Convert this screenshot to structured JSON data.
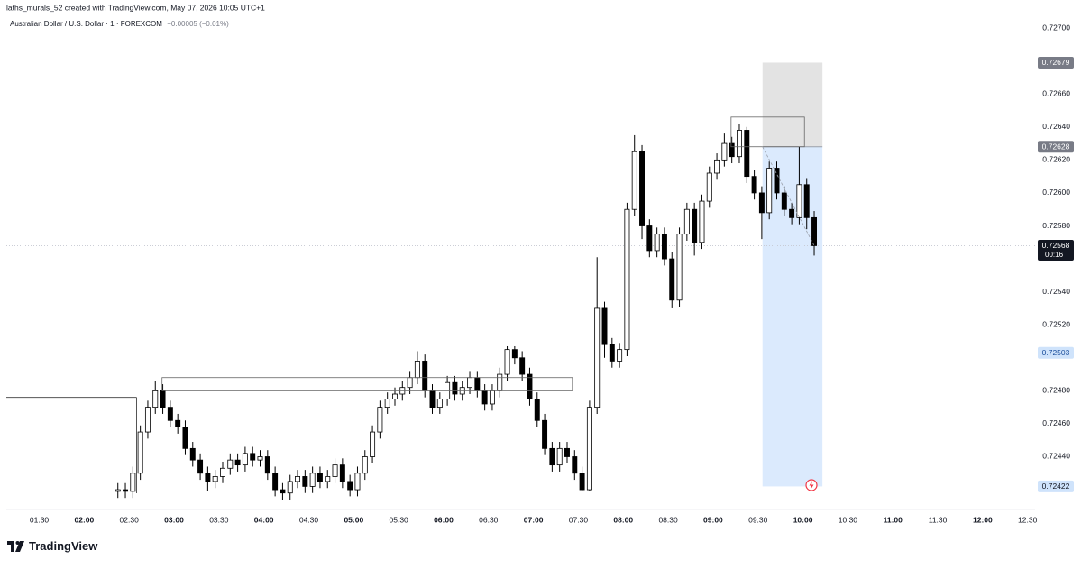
{
  "header": {
    "author_line": "laths_murals_52 created with TradingView.com, May 07, 2026 10:05 UTC+1"
  },
  "footer": {
    "brand": "TradingView"
  },
  "chart_data": {
    "type": "candlestick",
    "symbol": "Australian Dollar / U.S. Dollar · 1 · FOREXCOM",
    "change_text": "−0.00005 (−0.01%)",
    "up_color": "#ffffff",
    "down_color": "#000000",
    "border_color": "#000000",
    "xlim": [
      "01:08",
      "12:35"
    ],
    "xticks": [
      "01:30",
      "02:00",
      "02:30",
      "03:00",
      "03:30",
      "04:00",
      "04:30",
      "05:00",
      "05:30",
      "06:00",
      "06:30",
      "07:00",
      "07:30",
      "08:00",
      "08:30",
      "09:00",
      "09:30",
      "10:00",
      "10:30",
      "11:00",
      "11:30",
      "12:00",
      "12:30"
    ],
    "ylim": [
      0.72408,
      0.72717
    ],
    "yticks": [
      {
        "value": 0.727,
        "label": "0.72700"
      },
      {
        "value": 0.7266,
        "label": "0.72660"
      },
      {
        "value": 0.7264,
        "label": "0.72640"
      },
      {
        "value": 0.7262,
        "label": "0.72620"
      },
      {
        "value": 0.726,
        "label": "0.72600"
      },
      {
        "value": 0.7258,
        "label": "0.72580"
      },
      {
        "value": 0.7254,
        "label": "0.72540"
      },
      {
        "value": 0.7252,
        "label": "0.72520"
      },
      {
        "value": 0.7248,
        "label": "0.72480"
      },
      {
        "value": 0.7246,
        "label": "0.72460"
      },
      {
        "value": 0.7244,
        "label": "0.72440"
      }
    ],
    "x": [
      "02:20",
      "02:25",
      "02:30",
      "02:35",
      "02:40",
      "02:45",
      "02:50",
      "02:55",
      "03:00",
      "03:05",
      "03:10",
      "03:15",
      "03:20",
      "03:25",
      "03:30",
      "03:35",
      "03:40",
      "03:45",
      "03:50",
      "03:55",
      "04:00",
      "04:05",
      "04:10",
      "04:15",
      "04:20",
      "04:25",
      "04:30",
      "04:35",
      "04:40",
      "04:45",
      "04:50",
      "04:55",
      "05:00",
      "05:05",
      "05:10",
      "05:15",
      "05:20",
      "05:25",
      "05:30",
      "05:35",
      "05:40",
      "05:45",
      "05:50",
      "05:55",
      "06:00",
      "06:05",
      "06:10",
      "06:15",
      "06:20",
      "06:25",
      "06:30",
      "06:35",
      "06:40",
      "06:45",
      "06:50",
      "06:55",
      "07:00",
      "07:05",
      "07:10",
      "07:15",
      "07:20",
      "07:25",
      "07:30",
      "07:35",
      "07:40",
      "07:45",
      "07:50",
      "07:55",
      "08:00",
      "08:05",
      "08:10",
      "08:15",
      "08:20",
      "08:25",
      "08:30",
      "08:35",
      "08:40",
      "08:45",
      "08:50",
      "08:55",
      "09:00",
      "09:05",
      "09:10",
      "09:15",
      "09:20",
      "09:25",
      "09:30",
      "09:35",
      "09:40",
      "09:45",
      "09:50",
      "09:55",
      "10:00",
      "10:05"
    ],
    "open": [
      0.72419,
      0.7242,
      0.72419,
      0.7243,
      0.72455,
      0.7247,
      0.7248,
      0.7247,
      0.72462,
      0.72458,
      0.72445,
      0.72438,
      0.7243,
      0.72425,
      0.72428,
      0.72433,
      0.72438,
      0.72435,
      0.72442,
      0.72438,
      0.7244,
      0.7243,
      0.7242,
      0.72418,
      0.72425,
      0.72428,
      0.72422,
      0.7243,
      0.72425,
      0.72428,
      0.72435,
      0.72425,
      0.7242,
      0.7243,
      0.7244,
      0.72455,
      0.7247,
      0.72475,
      0.72478,
      0.72482,
      0.72488,
      0.72498,
      0.7248,
      0.7247,
      0.72475,
      0.72485,
      0.72478,
      0.72482,
      0.72488,
      0.7248,
      0.72472,
      0.7248,
      0.7249,
      0.72505,
      0.725,
      0.7249,
      0.72475,
      0.72462,
      0.72445,
      0.72435,
      0.72445,
      0.7244,
      0.7243,
      0.7242,
      0.7247,
      0.7253,
      0.72508,
      0.72498,
      0.72505,
      0.7259,
      0.72625,
      0.7258,
      0.72565,
      0.72575,
      0.7256,
      0.72535,
      0.72575,
      0.7259,
      0.7257,
      0.72595,
      0.72612,
      0.7262,
      0.7263,
      0.72622,
      0.72638,
      0.7261,
      0.726,
      0.72588,
      0.72615,
      0.726,
      0.7259,
      0.72585,
      0.72605,
      0.72585
    ],
    "high": [
      0.72424,
      0.72424,
      0.72434,
      0.72459,
      0.72474,
      0.72486,
      0.72484,
      0.72474,
      0.72466,
      0.72462,
      0.72449,
      0.72442,
      0.72434,
      0.72432,
      0.72437,
      0.72442,
      0.72442,
      0.72446,
      0.72446,
      0.72444,
      0.72444,
      0.72434,
      0.72424,
      0.72429,
      0.72432,
      0.72432,
      0.72434,
      0.72434,
      0.72432,
      0.72439,
      0.72439,
      0.72429,
      0.72434,
      0.72444,
      0.72459,
      0.72474,
      0.72479,
      0.72482,
      0.72486,
      0.72492,
      0.72504,
      0.72502,
      0.72484,
      0.72479,
      0.72489,
      0.72489,
      0.72486,
      0.72492,
      0.72492,
      0.72484,
      0.72484,
      0.72494,
      0.72507,
      0.72507,
      0.72504,
      0.72494,
      0.72479,
      0.72466,
      0.72449,
      0.72449,
      0.72449,
      0.72444,
      0.72434,
      0.72474,
      0.72561,
      0.72534,
      0.72512,
      0.72509,
      0.72594,
      0.72635,
      0.72629,
      0.72584,
      0.72579,
      0.72579,
      0.72564,
      0.72579,
      0.72594,
      0.72594,
      0.72599,
      0.72616,
      0.72624,
      0.72636,
      0.72634,
      0.72642,
      0.7264,
      0.72614,
      0.72604,
      0.72619,
      0.72619,
      0.72604,
      0.72594,
      0.72628,
      0.72609,
      0.72589
    ],
    "low": [
      0.72415,
      0.72415,
      0.72415,
      0.72426,
      0.72451,
      0.72466,
      0.72466,
      0.72458,
      0.72454,
      0.72441,
      0.72434,
      0.72426,
      0.72419,
      0.72421,
      0.72424,
      0.72429,
      0.72431,
      0.72431,
      0.72434,
      0.72434,
      0.72426,
      0.72416,
      0.72414,
      0.72414,
      0.72421,
      0.72418,
      0.72418,
      0.72421,
      0.72421,
      0.72424,
      0.72421,
      0.72416,
      0.72416,
      0.72426,
      0.72436,
      0.72451,
      0.72466,
      0.72471,
      0.72474,
      0.72478,
      0.72484,
      0.72476,
      0.72466,
      0.72466,
      0.72471,
      0.72474,
      0.72474,
      0.72478,
      0.72476,
      0.72468,
      0.72468,
      0.72476,
      0.72486,
      0.72496,
      0.72486,
      0.72471,
      0.72458,
      0.72441,
      0.72431,
      0.72431,
      0.72436,
      0.72426,
      0.72419,
      0.72419,
      0.72466,
      0.725,
      0.72494,
      0.72494,
      0.72501,
      0.72586,
      0.72572,
      0.72561,
      0.72561,
      0.72556,
      0.7253,
      0.72531,
      0.72571,
      0.72562,
      0.72566,
      0.72591,
      0.72608,
      0.72616,
      0.72618,
      0.72618,
      0.72606,
      0.72596,
      0.72572,
      0.72584,
      0.72596,
      0.72586,
      0.72581,
      0.72581,
      0.72578,
      0.72562
    ],
    "close": [
      0.7242,
      0.72419,
      0.7243,
      0.72455,
      0.7247,
      0.7248,
      0.7247,
      0.72462,
      0.72458,
      0.72445,
      0.72438,
      0.7243,
      0.72425,
      0.72428,
      0.72433,
      0.72438,
      0.72435,
      0.72442,
      0.72438,
      0.7244,
      0.7243,
      0.7242,
      0.72418,
      0.72425,
      0.72428,
      0.72422,
      0.7243,
      0.72425,
      0.72428,
      0.72435,
      0.72425,
      0.7242,
      0.7243,
      0.7244,
      0.72455,
      0.7247,
      0.72475,
      0.72478,
      0.72482,
      0.72488,
      0.72498,
      0.7248,
      0.7247,
      0.72475,
      0.72485,
      0.72478,
      0.72482,
      0.72488,
      0.7248,
      0.72472,
      0.7248,
      0.7249,
      0.72505,
      0.725,
      0.7249,
      0.72475,
      0.72462,
      0.72445,
      0.72435,
      0.72445,
      0.7244,
      0.7243,
      0.7242,
      0.7247,
      0.7253,
      0.72508,
      0.72498,
      0.72505,
      0.7259,
      0.72625,
      0.7258,
      0.72565,
      0.72575,
      0.7256,
      0.72535,
      0.72575,
      0.7259,
      0.7257,
      0.72595,
      0.72612,
      0.7262,
      0.7263,
      0.72622,
      0.72638,
      0.7261,
      0.726,
      0.72588,
      0.72615,
      0.726,
      0.7259,
      0.72585,
      0.72605,
      0.72585,
      0.72568
    ],
    "countdown": "00:16",
    "alert_price": 0.72503,
    "levels": [
      {
        "price": 0.72476,
        "from": "01:08",
        "to": "02:35"
      }
    ],
    "zones": [
      {
        "from": "02:52",
        "to": "07:26",
        "top": 0.72488,
        "bottom": 0.7248
      },
      {
        "from": "09:12",
        "to": "10:01",
        "top": 0.72646,
        "bottom": 0.72628
      }
    ],
    "position": {
      "from": "09:33",
      "to": "10:13",
      "stop": 0.72679,
      "entry": 0.72628,
      "target": 0.72422
    }
  }
}
